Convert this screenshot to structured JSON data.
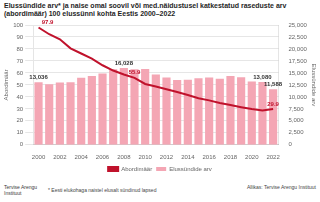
{
  "chart_data": {
    "type": "bar",
    "title": "Elussündide arv* ja naise omal soovil või med.näidustusel katkestatud raseduste arv (abordimäär) 100 elussünni kohta Eestis 2000–2022",
    "y_label": "Abordimäär",
    "y2_label": "Elussündide arv",
    "categories": [
      "2000",
      null,
      "2002",
      null,
      "2004",
      null,
      "2006",
      null,
      "2008",
      null,
      "2010",
      null,
      "2012",
      null,
      "2014",
      null,
      "2016",
      null,
      "2018",
      null,
      "2020",
      null,
      "2022"
    ],
    "series": [
      {
        "name": "Elussündide arv",
        "type": "bar",
        "color": "#f4a6b4",
        "axis": "y2",
        "values": [
          13036,
          12632,
          13001,
          13036,
          13992,
          14350,
          14877,
          15775,
          16028,
          15763,
          15825,
          14679,
          14056,
          13531,
          13551,
          13907,
          14053,
          13784,
          14367,
          14099,
          13209,
          13080,
          11588
        ],
        "value_labels": [
          "13,036",
          null,
          null,
          null,
          null,
          null,
          null,
          null,
          "16,028",
          null,
          null,
          null,
          null,
          null,
          null,
          null,
          null,
          null,
          null,
          null,
          null,
          "13,080",
          "11,588"
        ]
      },
      {
        "name": "Abordimäär",
        "type": "line",
        "color": "#c0122c",
        "values": [
          97.9,
          92.3,
          88.1,
          80.5,
          76.2,
          72.0,
          66.4,
          62.0,
          58.7,
          55.9,
          50.8,
          48.6,
          46.3,
          44.0,
          41.5,
          38.9,
          37.1,
          34.9,
          33.2,
          31.4,
          29.8,
          28.6,
          29.9
        ],
        "value_labels": [
          "97.9",
          null,
          null,
          null,
          null,
          null,
          null,
          null,
          null,
          "55.9",
          null,
          null,
          null,
          null,
          null,
          null,
          null,
          null,
          null,
          null,
          null,
          null,
          "29.9"
        ]
      }
    ],
    "ylim": [
      0,
      100
    ],
    "yticks": [
      0,
      10,
      20,
      30,
      40,
      50,
      60,
      70,
      80,
      90,
      100
    ],
    "y2lim": [
      0,
      25000
    ],
    "y2ticks": [
      0,
      {
        "value": 2500,
        "label": "2,500"
      },
      {
        "value": 5000,
        "label": "5,000"
      },
      {
        "value": 7500,
        "label": "7,500"
      },
      {
        "value": 10000,
        "label": "10,000"
      },
      {
        "value": 12500,
        "label": "12,500"
      },
      {
        "value": 15000,
        "label": "15,000"
      },
      {
        "value": 17500,
        "label": "17,500"
      },
      {
        "value": 20000,
        "label": "20,000"
      },
      {
        "value": 22500,
        "label": "22,500"
      },
      {
        "value": 25000,
        "label": "25,000"
      }
    ],
    "grid": true,
    "legend": "bottom",
    "footnote": "* Eesti elukohaga naistel elusalt sündinud lapsed",
    "source": "Allikas: Tervise Arengu Instituut"
  },
  "logo": "Tervise Arengu Instituut"
}
